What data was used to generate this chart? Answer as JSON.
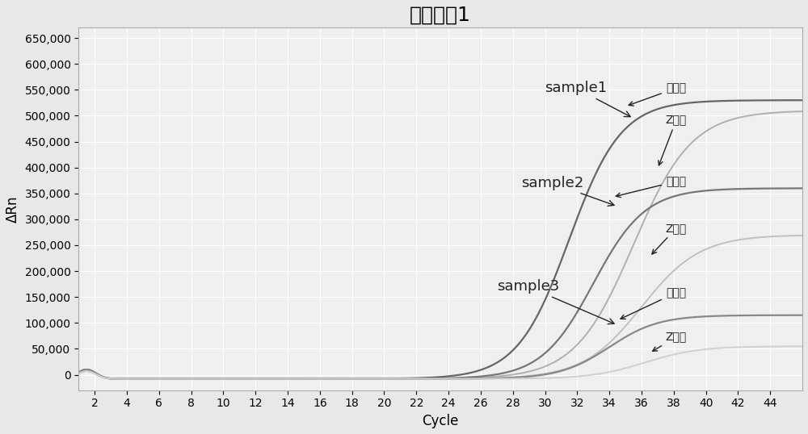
{
  "title": "目标基因1",
  "xlabel": "Cycle",
  "ylabel": "ΔRn",
  "xlim": [
    1,
    46
  ],
  "ylim": [
    -30000,
    670000
  ],
  "xticks": [
    2,
    4,
    6,
    8,
    10,
    12,
    14,
    16,
    18,
    20,
    22,
    24,
    26,
    28,
    30,
    32,
    34,
    36,
    38,
    40,
    42,
    44
  ],
  "yticks": [
    0,
    50000,
    100000,
    150000,
    200000,
    250000,
    300000,
    350000,
    400000,
    450000,
    500000,
    550000,
    600000,
    650000
  ],
  "ytick_labels": [
    "0",
    "50,000",
    "100,000",
    "150,000",
    "200,000",
    "250,000",
    "300,000",
    "350,000",
    "400,000",
    "450,000",
    "500,000",
    "550,000",
    "600,000",
    "650,000"
  ],
  "background_color": "#efefef",
  "grid_color": "#ffffff",
  "fig_facecolor": "#e8e8e8",
  "curves": [
    {
      "label": "sample1 本发明",
      "color": "#666666",
      "linewidth": 1.6,
      "midpoint": 31.5,
      "steepness": 0.62,
      "plateau": 530000,
      "baseline": -8000,
      "early_peak": 18000,
      "early_peak_cycle": 1.5,
      "early_decay": 1.5
    },
    {
      "label": "sample1 Z品牌",
      "color": "#b0b0b0",
      "linewidth": 1.4,
      "midpoint": 35.5,
      "steepness": 0.55,
      "plateau": 510000,
      "baseline": -8000,
      "early_peak": 15000,
      "early_peak_cycle": 1.5,
      "early_decay": 1.5
    },
    {
      "label": "sample2 本发明",
      "color": "#777777",
      "linewidth": 1.6,
      "midpoint": 33.0,
      "steepness": 0.62,
      "plateau": 360000,
      "baseline": -8000,
      "early_peak": 18000,
      "early_peak_cycle": 1.5,
      "early_decay": 1.5
    },
    {
      "label": "sample2 Z品牌",
      "color": "#c0c0c0",
      "linewidth": 1.4,
      "midpoint": 36.0,
      "steepness": 0.55,
      "plateau": 270000,
      "baseline": -8000,
      "early_peak": 15000,
      "early_peak_cycle": 1.5,
      "early_decay": 1.5
    },
    {
      "label": "sample3 本发明",
      "color": "#888888",
      "linewidth": 1.6,
      "midpoint": 34.0,
      "steepness": 0.65,
      "plateau": 115000,
      "baseline": -8000,
      "early_peak": 18000,
      "early_peak_cycle": 1.5,
      "early_decay": 1.5
    },
    {
      "label": "sample3 Z品牌",
      "color": "#d0d0d0",
      "linewidth": 1.4,
      "midpoint": 36.2,
      "steepness": 0.6,
      "plateau": 55000,
      "baseline": -8000,
      "early_peak": 15000,
      "early_peak_cycle": 1.5,
      "early_decay": 1.5
    }
  ],
  "title_fontsize": 18,
  "axis_label_fontsize": 12,
  "tick_fontsize": 10
}
